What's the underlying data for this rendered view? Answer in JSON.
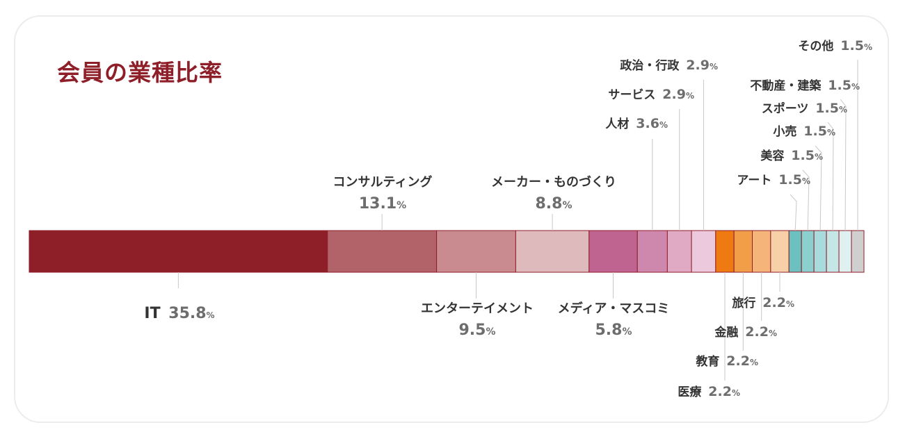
{
  "title": "会員の業種比率",
  "chart_data": {
    "type": "bar",
    "orientation": "horizontal-stacked-100",
    "title": "会員の業種比率",
    "unit": "%",
    "segments": [
      {
        "name": "IT",
        "value": 35.8,
        "color": "#8e1e28"
      },
      {
        "name": "コンサルティング",
        "value": 13.1,
        "color": "#b26269"
      },
      {
        "name": "エンターテイメント",
        "value": 9.5,
        "color": "#c98b90"
      },
      {
        "name": "メーカー・ものづくり",
        "value": 8.8,
        "color": "#dfbabc"
      },
      {
        "name": "メディア・マスコミ",
        "value": 5.8,
        "color": "#bf6390"
      },
      {
        "name": "人材",
        "value": 3.6,
        "color": "#cf88ad"
      },
      {
        "name": "サービス",
        "value": 2.9,
        "color": "#e0a9c4"
      },
      {
        "name": "政治・行政",
        "value": 2.9,
        "color": "#ecc9dc"
      },
      {
        "name": "医療",
        "value": 2.2,
        "color": "#ee7a11"
      },
      {
        "name": "教育",
        "value": 2.2,
        "color": "#f29d48"
      },
      {
        "name": "金融",
        "value": 2.2,
        "color": "#f5b57a"
      },
      {
        "name": "旅行",
        "value": 2.2,
        "color": "#f8d0a8"
      },
      {
        "name": "アート",
        "value": 1.5,
        "color": "#6cc0bf"
      },
      {
        "name": "美容",
        "value": 1.5,
        "color": "#8bcfcf"
      },
      {
        "name": "小売",
        "value": 1.5,
        "color": "#a8dbdb"
      },
      {
        "name": "スポーツ",
        "value": 1.5,
        "color": "#c4e6e6"
      },
      {
        "name": "不動産・建築",
        "value": 1.5,
        "color": "#dff0f0"
      },
      {
        "name": "その他",
        "value": 1.5,
        "color": "#cfcfcf"
      }
    ]
  }
}
